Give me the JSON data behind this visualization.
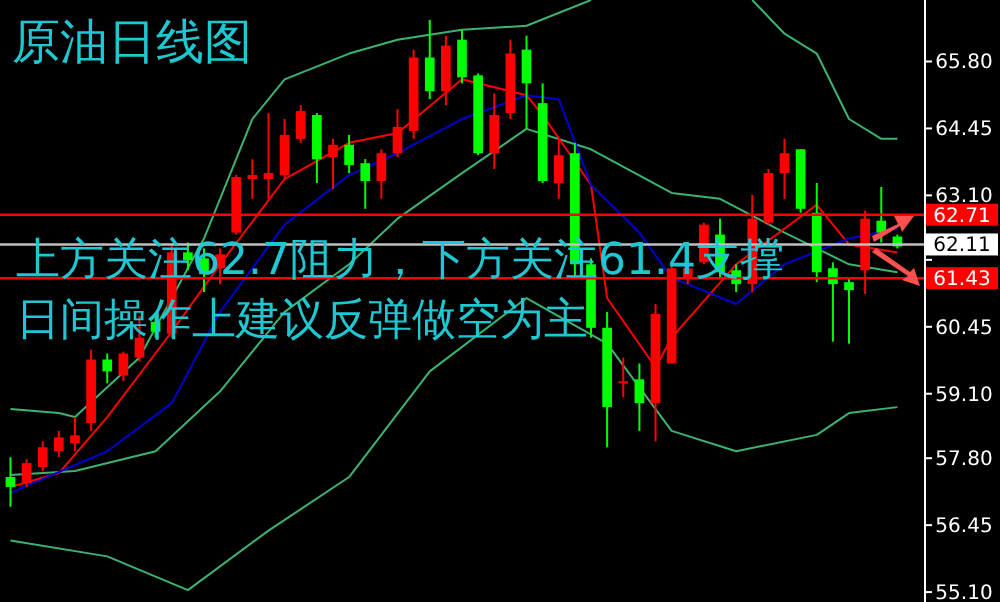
{
  "chart_data": {
    "type": "candlestick",
    "title": "原油日线图",
    "annotations": [
      "上方关注62.7阻力，下方关注61.4支撑",
      "日间操作上建议反弹做空为主"
    ],
    "categories": [
      null,
      null,
      null,
      null,
      null,
      null,
      null,
      null,
      null,
      null,
      null,
      null,
      null,
      null,
      null,
      null,
      null,
      null,
      null,
      null,
      null,
      null,
      null,
      null,
      null,
      null,
      null,
      null,
      null,
      null,
      null,
      null,
      null,
      null,
      null,
      null,
      null,
      null,
      null,
      null,
      null,
      null,
      null,
      null,
      null,
      null,
      null,
      null,
      null,
      null,
      null,
      null,
      null,
      null,
      null,
      null
    ],
    "ohlc": [
      [
        57.42,
        57.82,
        56.82,
        57.22
      ],
      [
        57.3,
        57.78,
        57.22,
        57.7
      ],
      [
        57.62,
        58.14,
        57.54,
        58.02
      ],
      [
        57.94,
        58.35,
        57.82,
        58.22
      ],
      [
        58.1,
        58.63,
        57.94,
        58.26
      ],
      [
        58.51,
        59.99,
        58.35,
        59.79
      ],
      [
        59.79,
        59.91,
        59.31,
        59.55
      ],
      [
        59.47,
        59.95,
        59.35,
        59.91
      ],
      [
        59.83,
        60.67,
        59.75,
        60.23
      ],
      [
        60.55,
        60.71,
        60.23,
        60.35
      ],
      [
        60.31,
        62.11,
        60.23,
        61.95
      ],
      [
        61.95,
        62.15,
        61.59,
        61.79
      ],
      [
        61.83,
        62.03,
        61.15,
        61.51
      ],
      [
        61.63,
        62.03,
        61.31,
        61.91
      ],
      [
        62.35,
        63.51,
        62.31,
        63.47
      ],
      [
        63.43,
        63.83,
        63.03,
        63.51
      ],
      [
        63.43,
        64.76,
        63.03,
        63.55
      ],
      [
        63.51,
        64.64,
        63.43,
        64.32
      ],
      [
        64.24,
        64.92,
        64.16,
        64.8
      ],
      [
        64.72,
        64.76,
        63.35,
        63.83
      ],
      [
        63.87,
        64.24,
        63.23,
        64.12
      ],
      [
        64.12,
        64.32,
        63.55,
        63.71
      ],
      [
        63.75,
        63.83,
        62.83,
        63.39
      ],
      [
        63.39,
        64.03,
        63.03,
        63.95
      ],
      [
        63.95,
        64.84,
        63.87,
        64.48
      ],
      [
        64.4,
        66.04,
        64.24,
        65.88
      ],
      [
        65.88,
        66.64,
        65.04,
        65.2
      ],
      [
        65.2,
        66.32,
        64.92,
        66.12
      ],
      [
        66.24,
        66.44,
        65.36,
        65.48
      ],
      [
        65.52,
        65.56,
        63.91,
        63.95
      ],
      [
        63.95,
        65.16,
        63.63,
        64.72
      ],
      [
        64.76,
        66.24,
        64.64,
        65.96
      ],
      [
        66.04,
        66.32,
        64.44,
        65.36
      ],
      [
        64.96,
        65.36,
        63.35,
        63.39
      ],
      [
        63.35,
        64.24,
        63.03,
        63.91
      ],
      [
        63.95,
        64.16,
        61.43,
        61.71
      ],
      [
        61.71,
        61.83,
        60.23,
        60.43
      ],
      [
        60.43,
        60.75,
        58.02,
        58.83
      ],
      [
        59.31,
        59.83,
        59.03,
        59.35
      ],
      [
        59.39,
        59.71,
        58.35,
        58.91
      ],
      [
        58.91,
        60.91,
        58.14,
        60.71
      ],
      [
        59.71,
        61.75,
        59.71,
        61.63
      ],
      [
        61.43,
        61.75,
        61.31,
        61.63
      ],
      [
        61.75,
        62.55,
        61.71,
        62.51
      ],
      [
        62.31,
        62.63,
        61.43,
        61.55
      ],
      [
        61.59,
        61.71,
        61.15,
        61.31
      ],
      [
        61.31,
        63.11,
        61.15,
        62.63
      ],
      [
        62.55,
        63.63,
        62.51,
        63.55
      ],
      [
        63.55,
        64.24,
        63.03,
        63.95
      ],
      [
        64.03,
        64.03,
        62.75,
        62.83
      ],
      [
        62.75,
        63.35,
        61.35,
        61.55
      ],
      [
        61.63,
        61.75,
        60.15,
        61.31
      ],
      [
        61.35,
        61.43,
        60.11,
        61.19
      ],
      [
        61.59,
        62.79,
        61.11,
        62.63
      ],
      [
        62.59,
        63.27,
        62.15,
        62.35
      ],
      [
        62.27,
        62.31,
        62.03,
        62.07
      ]
    ],
    "series": [
      {
        "type": "line",
        "color": "#3cb371",
        "values": [
          58.79,
          null,
          null,
          58.71,
          58.63,
          null,
          null,
          null,
          59.83,
          null,
          null,
          null,
          62.23,
          null,
          null,
          64.64,
          null,
          65.44,
          null,
          null,
          null,
          65.96,
          null,
          null,
          66.24,
          null,
          null,
          null,
          66.44,
          null,
          null,
          null,
          66.52,
          null,
          null,
          null,
          67.04,
          null,
          null,
          null,
          null,
          null,
          null,
          null,
          null,
          null,
          null,
          null,
          null,
          null,
          null,
          null,
          null,
          null,
          null,
          null
        ]
      },
      {
        "type": "line",
        "color": "#3cb371",
        "values": [
          null,
          null,
          null,
          null,
          null,
          null,
          null,
          null,
          null,
          null,
          null,
          null,
          null,
          null,
          null,
          null,
          null,
          null,
          null,
          null,
          null,
          null,
          null,
          null,
          null,
          null,
          null,
          null,
          null,
          null,
          null,
          null,
          null,
          null,
          null,
          null,
          null,
          null,
          null,
          null,
          null,
          null,
          null,
          null,
          null,
          null,
          67.04,
          null,
          66.36,
          null,
          65.96,
          null,
          64.64,
          null,
          64.24,
          64.24
        ]
      },
      {
        "type": "line",
        "color": "#3cb371",
        "values": [
          57.46,
          null,
          null,
          null,
          57.54,
          null,
          null,
          null,
          null,
          57.94,
          null,
          null,
          null,
          59.15,
          null,
          null,
          null,
          60.75,
          null,
          null,
          null,
          61.71,
          null,
          null,
          62.63,
          null,
          null,
          null,
          63.55,
          null,
          null,
          null,
          64.44,
          null,
          null,
          null,
          64.03,
          null,
          null,
          null,
          null,
          63.15,
          null,
          null,
          63.03,
          null,
          null,
          null,
          62.35,
          null,
          null,
          null,
          61.71,
          null,
          null,
          61.55
        ]
      },
      {
        "type": "line",
        "color": "#3cb371",
        "values": [
          56.14,
          null,
          null,
          null,
          null,
          null,
          55.82,
          null,
          null,
          null,
          null,
          55.14,
          null,
          null,
          null,
          null,
          56.34,
          null,
          null,
          null,
          null,
          57.42,
          null,
          null,
          null,
          null,
          59.55,
          null,
          null,
          null,
          null,
          null,
          61.03,
          null,
          null,
          null,
          null,
          60.11,
          null,
          null,
          null,
          58.35,
          null,
          null,
          null,
          57.94,
          null,
          null,
          null,
          null,
          58.27,
          null,
          58.71,
          null,
          null,
          58.83
        ]
      },
      {
        "type": "line",
        "color": "#ff0000",
        "values": [
          57.22,
          null,
          null,
          57.5,
          null,
          null,
          58.63,
          null,
          null,
          null,
          60.35,
          null,
          null,
          61.71,
          null,
          null,
          null,
          63.43,
          null,
          null,
          null,
          64.16,
          null,
          null,
          64.36,
          null,
          null,
          null,
          65.44,
          null,
          null,
          null,
          65.12,
          64.72,
          null,
          null,
          63.31,
          61.03,
          null,
          null,
          59.63,
          60.23,
          null,
          null,
          null,
          61.71,
          null,
          null,
          null,
          null,
          62.91,
          null,
          62.11,
          null,
          null,
          61.95
        ]
      },
      {
        "type": "line",
        "color": "#0000cd",
        "values": [
          57.1,
          null,
          null,
          null,
          null,
          null,
          57.94,
          null,
          null,
          null,
          58.91,
          null,
          null,
          60.75,
          null,
          null,
          null,
          62.51,
          null,
          null,
          null,
          63.51,
          null,
          null,
          63.95,
          null,
          null,
          null,
          64.64,
          null,
          null,
          null,
          65.12,
          null,
          65.04,
          null,
          63.31,
          null,
          null,
          62.35,
          null,
          61.43,
          61.31,
          null,
          null,
          60.91,
          null,
          null,
          61.71,
          null,
          null,
          null,
          62.23,
          null,
          null,
          62.43
        ]
      }
    ],
    "ylim": [
      54.9,
      67.04
    ],
    "yticks": [
      {
        "value": 55.1,
        "label": "55.10"
      },
      56.45,
      {
        "value": 57.8,
        "label": "57.80"
      },
      {
        "value": 59.1,
        "label": "59.10"
      },
      60.45,
      {
        "value": 61.8,
        "label": null
      },
      {
        "value": 63.1,
        "label": "63.10"
      },
      64.45,
      {
        "value": 65.8,
        "label": "65.80"
      }
    ],
    "tick_labels": "y",
    "ref_lines": [
      {
        "axis": "y",
        "value": 62.71,
        "label": "62.71",
        "color": "#ff0000"
      },
      {
        "axis": "y",
        "value": 61.43,
        "label": "61.43",
        "color": "#ff0000"
      },
      {
        "axis": "y",
        "value": 62.11,
        "label": "62.11",
        "color": "#c0c0c0"
      }
    ]
  }
}
